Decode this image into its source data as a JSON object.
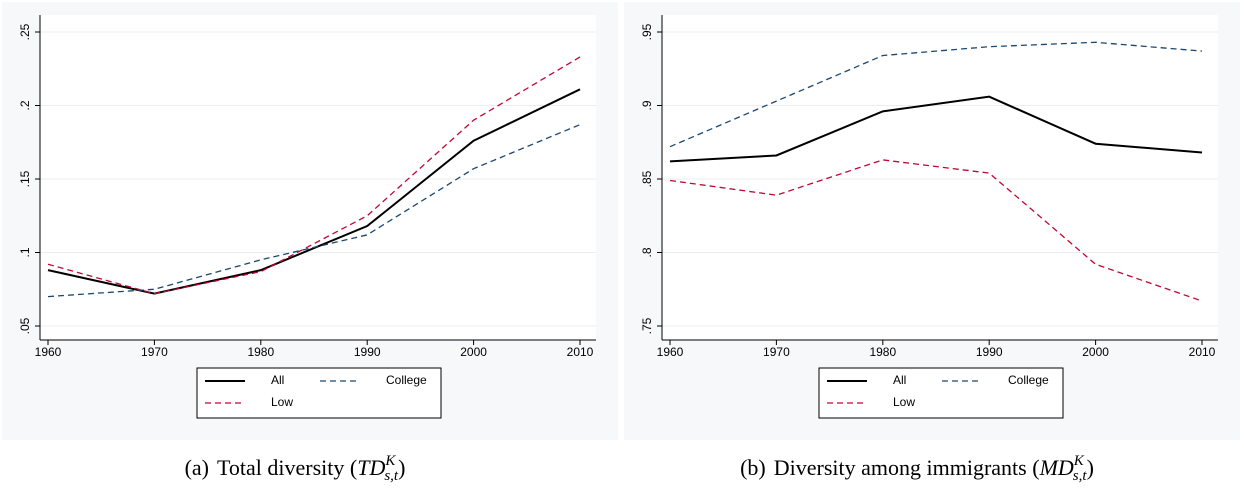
{
  "chart_data": [
    {
      "type": "line",
      "caption": {
        "label": "(a)",
        "text": "Total diversity (",
        "math": "TD",
        "sup": "K",
        "sub": "s,t",
        "close": ")"
      },
      "x": [
        1960,
        1970,
        1980,
        1990,
        2000,
        2010
      ],
      "xlim": [
        1960,
        2010
      ],
      "xticks": [
        1960,
        1970,
        1980,
        1990,
        2000,
        2010
      ],
      "ylim": [
        0.05,
        0.25
      ],
      "yticks": [
        {
          "value": 0.05,
          "label": ".05"
        },
        {
          "value": 0.1,
          "label": ".1"
        },
        {
          "value": 0.15,
          "label": ".15"
        },
        {
          "value": 0.2,
          "label": ".2"
        },
        {
          "value": 0.25,
          "label": ".25"
        }
      ],
      "grid": true,
      "series": [
        {
          "name": "All",
          "color": "#000000",
          "dash": "solid",
          "values": [
            0.088,
            0.072,
            0.088,
            0.118,
            0.176,
            0.211
          ]
        },
        {
          "name": "College",
          "color": "#1a476f",
          "dash": "dashed",
          "values": [
            0.07,
            0.075,
            0.095,
            0.112,
            0.157,
            0.187
          ]
        },
        {
          "name": "Low",
          "color": "#c10534",
          "dash": "dashed",
          "values": [
            0.092,
            0.072,
            0.087,
            0.125,
            0.19,
            0.233
          ]
        }
      ]
    },
    {
      "type": "line",
      "caption": {
        "label": "(b)",
        "text": "Diversity among immigrants (",
        "math": "MD",
        "sup": "K",
        "sub": "s,t",
        "close": ")"
      },
      "x": [
        1960,
        1970,
        1980,
        1990,
        2000,
        2010
      ],
      "xlim": [
        1960,
        2010
      ],
      "xticks": [
        1960,
        1970,
        1980,
        1990,
        2000,
        2010
      ],
      "ylim": [
        0.75,
        0.95
      ],
      "yticks": [
        {
          "value": 0.75,
          "label": ".75"
        },
        {
          "value": 0.8,
          "label": ".8"
        },
        {
          "value": 0.85,
          "label": ".85"
        },
        {
          "value": 0.9,
          "label": ".9"
        },
        {
          "value": 0.95,
          "label": ".95"
        }
      ],
      "grid": true,
      "series": [
        {
          "name": "All",
          "color": "#000000",
          "dash": "solid",
          "values": [
            0.862,
            0.866,
            0.896,
            0.906,
            0.874,
            0.868
          ]
        },
        {
          "name": "College",
          "color": "#1a476f",
          "dash": "dashed",
          "values": [
            0.872,
            0.903,
            0.934,
            0.94,
            0.943,
            0.937
          ]
        },
        {
          "name": "Low",
          "color": "#c10534",
          "dash": "dashed",
          "values": [
            0.849,
            0.839,
            0.863,
            0.854,
            0.792,
            0.767
          ]
        }
      ]
    }
  ]
}
